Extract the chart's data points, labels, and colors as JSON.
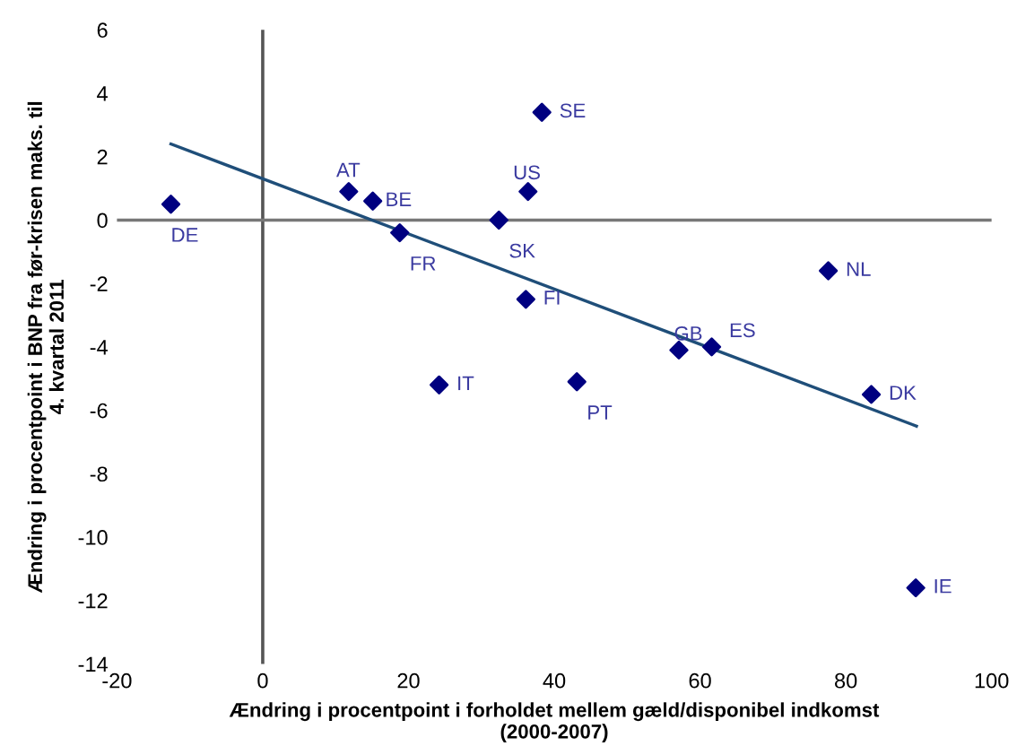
{
  "chart_data": {
    "type": "scatter",
    "xlabel": "Ændring i procentpoint i forholdet mellem gæld/disponibel indkomst\n(2000-2007)",
    "ylabel": "Ændring i procentpoint i BNP fra før-krisen maks. til\n4. kvartal 2011",
    "xlim": [
      -20,
      100
    ],
    "xticks": [
      -20,
      0,
      20,
      40,
      60,
      80,
      100
    ],
    "ylim": [
      -14,
      6
    ],
    "yticks": [
      -14,
      -12,
      -10,
      -8,
      -6,
      -4,
      -2,
      0,
      2,
      4,
      6
    ],
    "grid": false,
    "legend": false,
    "series": [
      {
        "marker": "diamond",
        "color": "#000080",
        "x": [
          -12.6,
          11.8,
          15.1,
          18.8,
          32.4,
          36.4,
          38.3,
          36.1,
          77.6,
          57.1,
          61.6,
          24.2,
          43.1,
          83.5,
          89.6
        ],
        "values": [
          0.5,
          0.9,
          0.6,
          -0.4,
          0,
          0.9,
          3.4,
          -2.5,
          -1.6,
          -4.1,
          -4.0,
          -5.2,
          -5.1,
          -5.5,
          -11.6
        ]
      },
      {
        "type": "line",
        "color": "#1f4e79",
        "x": [
          -12.6,
          89.7
        ],
        "values": [
          2.4,
          -6.5
        ]
      }
    ],
    "ref_lines": [
      {
        "axis": "x",
        "value": 0,
        "color": "#555555"
      },
      {
        "axis": "y",
        "value": 0,
        "color": "#777777"
      }
    ],
    "annotations": [
      {
        "text": "DE",
        "x": -12.6,
        "y": 0.5
      },
      {
        "text": "AT",
        "x": 11.8,
        "y": 0.9
      },
      {
        "text": "BE",
        "x": 15.1,
        "y": 0.6
      },
      {
        "text": "FR",
        "x": 18.8,
        "y": -0.4
      },
      {
        "text": "SK",
        "x": 32.4,
        "y": 0
      },
      {
        "text": "US",
        "x": 36.4,
        "y": 0.9
      },
      {
        "text": "SE",
        "x": 38.3,
        "y": 3.4
      },
      {
        "text": "FI",
        "x": 36.1,
        "y": -2.5
      },
      {
        "text": "NL",
        "x": 77.6,
        "y": -1.6
      },
      {
        "text": "GB",
        "x": 57.1,
        "y": -4.1
      },
      {
        "text": "ES",
        "x": 61.6,
        "y": -4.0
      },
      {
        "text": "IT",
        "x": 24.2,
        "y": -5.2
      },
      {
        "text": "PT",
        "x": 43.1,
        "y": -5.1
      },
      {
        "text": "DK",
        "x": 83.5,
        "y": -5.5
      },
      {
        "text": "IE",
        "x": 89.6,
        "y": -11.6
      }
    ]
  }
}
